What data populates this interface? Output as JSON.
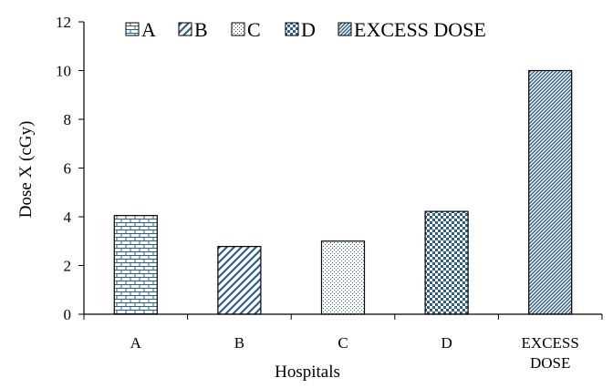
{
  "chart_data": {
    "type": "bar",
    "categories": [
      "A",
      "B",
      "C",
      "D",
      "EXCESS DOSE"
    ],
    "category_tick_lines": [
      [
        "A"
      ],
      [
        "B"
      ],
      [
        "C"
      ],
      [
        "D"
      ],
      [
        "EXCESS",
        "DOSE"
      ]
    ],
    "values": [
      4.05,
      2.78,
      3.0,
      4.22,
      10.0
    ],
    "xlabel": "Hospitals",
    "ylabel": "Dose X  (cGy)",
    "ylim": [
      0,
      12
    ],
    "yticks": [
      0,
      2,
      4,
      6,
      8,
      10,
      12
    ],
    "grid": false,
    "legend": {
      "placement": "top",
      "entries": [
        "A",
        "B",
        "C",
        "D",
        "EXCESS DOSE"
      ]
    },
    "fill_patterns": [
      "brick",
      "wide-diagonal",
      "dots",
      "checker",
      "dense-diagonal"
    ],
    "colors": {
      "bar_stroke": "#000000",
      "pattern_ink": "#2e5f8a",
      "axis": "#000000",
      "background": "#ffffff"
    }
  }
}
